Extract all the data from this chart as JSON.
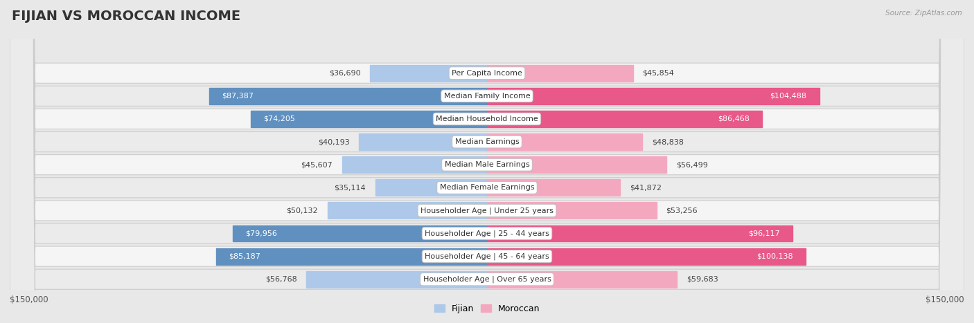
{
  "title": "FIJIAN VS MOROCCAN INCOME",
  "source": "Source: ZipAtlas.com",
  "categories": [
    "Per Capita Income",
    "Median Family Income",
    "Median Household Income",
    "Median Earnings",
    "Median Male Earnings",
    "Median Female Earnings",
    "Householder Age | Under 25 years",
    "Householder Age | 25 - 44 years",
    "Householder Age | 45 - 64 years",
    "Householder Age | Over 65 years"
  ],
  "fijian_values": [
    36690,
    87387,
    74205,
    40193,
    45607,
    35114,
    50132,
    79956,
    85187,
    56768
  ],
  "moroccan_values": [
    45854,
    104488,
    86468,
    48838,
    56499,
    41872,
    53256,
    96117,
    100138,
    59683
  ],
  "fijian_labels": [
    "$36,690",
    "$87,387",
    "$74,205",
    "$40,193",
    "$45,607",
    "$35,114",
    "$50,132",
    "$79,956",
    "$85,187",
    "$56,768"
  ],
  "moroccan_labels": [
    "$45,854",
    "$104,488",
    "$86,468",
    "$48,838",
    "$56,499",
    "$41,872",
    "$53,256",
    "$96,117",
    "$100,138",
    "$59,683"
  ],
  "fijian_color_light": "#adc8e8",
  "fijian_color_dark": "#6090c0",
  "moroccan_color_light": "#f4a8c0",
  "moroccan_color_dark": "#e85888",
  "threshold": 65000,
  "max_value": 150000,
  "background_color": "#e8e8e8",
  "row_bg_even": "#f5f5f5",
  "row_bg_odd": "#ebebeb",
  "title_fontsize": 14,
  "label_fontsize": 8,
  "category_fontsize": 8,
  "axis_label": "$150,000",
  "legend_fijian": "Fijian",
  "legend_moroccan": "Moroccan"
}
